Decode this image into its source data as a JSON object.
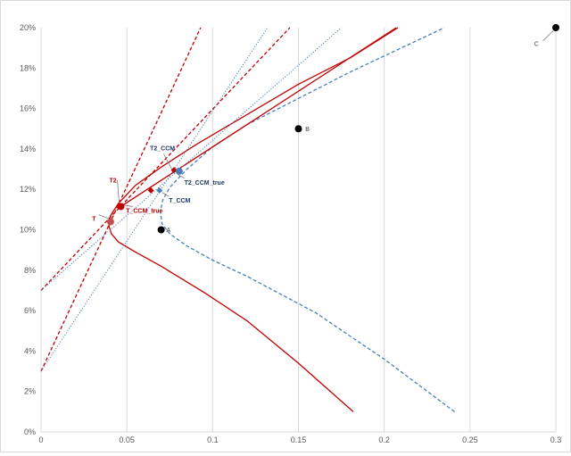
{
  "chart_data": {
    "type": "scatter",
    "x_ticks": [
      "0",
      "0.05",
      "0.1",
      "0.15",
      "0.2",
      "0.25",
      "0.3"
    ],
    "y_ticks": [
      "0%",
      "2%",
      "4%",
      "6%",
      "8%",
      "10%",
      "12%",
      "14%",
      "16%",
      "18%",
      "20%"
    ],
    "xlim": [
      0,
      0.3
    ],
    "ylim": [
      0,
      0.2
    ],
    "grid": "vertical lines",
    "colors": {
      "red": "#c00000",
      "blue": "#4a7ebb",
      "black": "#000000",
      "grid": "#d9d9d9"
    },
    "frontiers": [
      {
        "style": "solid",
        "color": "#c00000",
        "points": [
          [
            0.182,
            0.01
          ],
          [
            0.15,
            0.034
          ],
          [
            0.12,
            0.055
          ],
          [
            0.095,
            0.069
          ],
          [
            0.07,
            0.082
          ],
          [
            0.055,
            0.089
          ],
          [
            0.045,
            0.094
          ],
          [
            0.041,
            0.098
          ],
          [
            0.0395,
            0.102
          ],
          [
            0.0405,
            0.107
          ],
          [
            0.045,
            0.113
          ],
          [
            0.055,
            0.122
          ],
          [
            0.07,
            0.131
          ],
          [
            0.09,
            0.142
          ],
          [
            0.12,
            0.157
          ],
          [
            0.15,
            0.172
          ],
          [
            0.18,
            0.185
          ],
          [
            0.208,
            0.2
          ]
        ]
      },
      {
        "style": "dashed",
        "color": "#4a7ebb",
        "points": [
          [
            0.241,
            0.01
          ],
          [
            0.2,
            0.036
          ],
          [
            0.16,
            0.059
          ],
          [
            0.12,
            0.077
          ],
          [
            0.1,
            0.085
          ],
          [
            0.085,
            0.092
          ],
          [
            0.075,
            0.098
          ],
          [
            0.0705,
            0.103
          ],
          [
            0.0695,
            0.109
          ],
          [
            0.071,
            0.115
          ],
          [
            0.075,
            0.121
          ],
          [
            0.085,
            0.13
          ],
          [
            0.1,
            0.141
          ],
          [
            0.12,
            0.152
          ],
          [
            0.15,
            0.165
          ],
          [
            0.18,
            0.178
          ],
          [
            0.21,
            0.19
          ],
          [
            0.235,
            0.2
          ]
        ]
      }
    ],
    "tangent_lines": [
      {
        "style": "solid",
        "color": "#c00000",
        "from": [
          0.0465,
          0.1115
        ],
        "to": [
          0.207,
          0.2
        ]
      },
      {
        "style": "dashed",
        "color": "#c00000",
        "from": [
          0,
          0.07
        ],
        "to": [
          0.145,
          0.2
        ]
      },
      {
        "style": "dashed",
        "color": "#c00000",
        "from": [
          0,
          0.03
        ],
        "to": [
          0.093,
          0.2
        ]
      },
      {
        "style": "dotted",
        "color": "#4a7ebb",
        "from": [
          0,
          0.07
        ],
        "to": [
          0.175,
          0.2
        ]
      },
      {
        "style": "dotted",
        "color": "#4a7ebb",
        "from": [
          0,
          0.03
        ],
        "to": [
          0.132,
          0.2
        ]
      }
    ],
    "points": [
      {
        "name": "A",
        "x": 0.07,
        "y": 0.1,
        "color": "#000000",
        "shape": "circle"
      },
      {
        "name": "B",
        "x": 0.15,
        "y": 0.15,
        "color": "#000000",
        "shape": "circle"
      },
      {
        "name": "C",
        "x": 0.3,
        "y": 0.2,
        "color": "#000000",
        "shape": "circle"
      },
      {
        "name": "T",
        "x": 0.0405,
        "y": 0.104,
        "color": "#c0504d",
        "shape": "circle"
      },
      {
        "name": "T2",
        "x": 0.0465,
        "y": 0.1115,
        "color": "#c00000",
        "shape": "circle"
      },
      {
        "name": "T_CCM_true",
        "x": 0.0405,
        "y": 0.104,
        "color": "#c00000",
        "shape": "none"
      },
      {
        "name": "T_CCM",
        "x": 0.069,
        "y": 0.1195,
        "color": "#4a7ebb",
        "shape": "diamond"
      },
      {
        "name": "",
        "x": 0.064,
        "y": 0.1195,
        "color": "#c00000",
        "shape": "diamond"
      },
      {
        "name": "T2_CCM",
        "x": 0.0775,
        "y": 0.1295,
        "color": "#c00000",
        "shape": "diamond"
      },
      {
        "name": "T2_CCM_true",
        "x": 0.0805,
        "y": 0.129,
        "color": "#4a7ebb",
        "shape": "circle"
      }
    ],
    "labels": [
      {
        "text": "A",
        "x": 0.073,
        "y": 0.1,
        "color": "#404040",
        "anchor": "start"
      },
      {
        "text": "B",
        "x": 0.154,
        "y": 0.15,
        "color": "#404040",
        "anchor": "start"
      },
      {
        "text": "C",
        "x": 0.29,
        "y": 0.192,
        "color": "#404040",
        "anchor": "end"
      },
      {
        "text": "T",
        "x": 0.032,
        "y": 0.1055,
        "color": "#c00000",
        "anchor": "end"
      },
      {
        "text": "T2",
        "x": 0.044,
        "y": 0.1245,
        "color": "#c00000",
        "anchor": "end"
      },
      {
        "text": "T_CCM_true",
        "x": 0.0495,
        "y": 0.1095,
        "color": "#c00000",
        "anchor": "start"
      },
      {
        "text": "T_CCM",
        "x": 0.0745,
        "y": 0.1145,
        "color": "#1f3864",
        "anchor": "start"
      },
      {
        "text": "T2_CCM",
        "x": 0.0635,
        "y": 0.1405,
        "color": "#1f3864",
        "anchor": "start"
      },
      {
        "text": "T2_CCM_true",
        "x": 0.0835,
        "y": 0.1235,
        "color": "#1f3864",
        "anchor": "start"
      }
    ],
    "callouts": [
      {
        "from": [
          0.2925,
          0.1935
        ],
        "to": [
          0.2985,
          0.1985
        ]
      },
      {
        "from": [
          0.0335,
          0.1075
        ],
        "to": [
          0.0395,
          0.1055
        ]
      },
      {
        "from": [
          0.0445,
          0.1245
        ],
        "to": [
          0.0455,
          0.1135
        ]
      },
      {
        "from": [
          0.0455,
          0.1125
        ],
        "to": [
          0.0535,
          0.1115
        ]
      },
      {
        "from": [
          0.0745,
          0.1165
        ],
        "to": [
          0.0705,
          0.1185
        ]
      },
      {
        "from": [
          0.0715,
          0.1375
        ],
        "to": [
          0.0765,
          0.1295
        ]
      },
      {
        "from": [
          0.0795,
          0.1275
        ],
        "to": [
          0.0835,
          0.1255
        ]
      }
    ]
  }
}
